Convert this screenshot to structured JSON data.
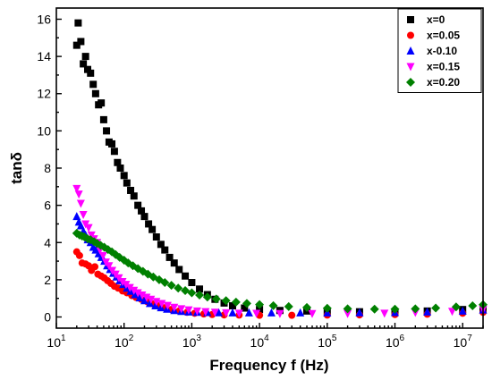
{
  "chart_data": {
    "type": "scatter",
    "xlabel": "Frequency f (Hz)",
    "ylabel": "tanδ",
    "xscale": "log",
    "xlim": [
      10,
      20000000
    ],
    "ylim": [
      -0.6,
      16.6
    ],
    "yticks": [
      0,
      2,
      4,
      6,
      8,
      10,
      12,
      14,
      16
    ],
    "xticks": [
      {
        "value": 10,
        "base": "10",
        "exp": "1"
      },
      {
        "value": 100,
        "base": "10",
        "exp": "2"
      },
      {
        "value": 1000,
        "base": "10",
        "exp": "3"
      },
      {
        "value": 10000,
        "base": "10",
        "exp": "4"
      },
      {
        "value": 100000,
        "base": "10",
        "exp": "5"
      },
      {
        "value": 1000000,
        "base": "10",
        "exp": "6"
      },
      {
        "value": 10000000,
        "base": "10",
        "exp": "7"
      }
    ],
    "legend_position": "top-right",
    "series": [
      {
        "name": "x=0",
        "marker": "square",
        "color": "#000000",
        "points": [
          [
            20,
            14.6
          ],
          [
            21,
            15.8
          ],
          [
            23,
            14.8
          ],
          [
            25,
            13.6
          ],
          [
            27,
            14.0
          ],
          [
            29,
            13.3
          ],
          [
            32,
            13.1
          ],
          [
            35,
            12.5
          ],
          [
            38,
            12.0
          ],
          [
            42,
            11.4
          ],
          [
            46,
            11.5
          ],
          [
            50,
            10.6
          ],
          [
            55,
            10.0
          ],
          [
            60,
            9.4
          ],
          [
            66,
            9.3
          ],
          [
            72,
            8.9
          ],
          [
            80,
            8.3
          ],
          [
            88,
            8.0
          ],
          [
            100,
            7.6
          ],
          [
            110,
            7.2
          ],
          [
            125,
            6.8
          ],
          [
            140,
            6.5
          ],
          [
            160,
            6.0
          ],
          [
            180,
            5.7
          ],
          [
            200,
            5.4
          ],
          [
            230,
            5.0
          ],
          [
            260,
            4.7
          ],
          [
            300,
            4.3
          ],
          [
            350,
            3.9
          ],
          [
            400,
            3.6
          ],
          [
            470,
            3.2
          ],
          [
            550,
            2.9
          ],
          [
            650,
            2.55
          ],
          [
            800,
            2.2
          ],
          [
            1000,
            1.85
          ],
          [
            1300,
            1.5
          ],
          [
            1700,
            1.2
          ],
          [
            2200,
            0.95
          ],
          [
            3000,
            0.75
          ],
          [
            4000,
            0.6
          ],
          [
            6000,
            0.48
          ],
          [
            10000,
            0.4
          ],
          [
            20000,
            0.35
          ],
          [
            50000,
            0.32
          ],
          [
            100000,
            0.3
          ],
          [
            300000,
            0.28
          ],
          [
            1000000,
            0.28
          ],
          [
            3000000,
            0.32
          ],
          [
            10000000,
            0.4
          ],
          [
            20000000,
            0.45
          ]
        ]
      },
      {
        "name": "x=0.05",
        "marker": "circle",
        "color": "#ff0000",
        "points": [
          [
            20,
            3.5
          ],
          [
            22,
            3.3
          ],
          [
            24,
            2.9
          ],
          [
            27,
            2.85
          ],
          [
            30,
            2.75
          ],
          [
            33,
            2.5
          ],
          [
            37,
            2.7
          ],
          [
            41,
            2.3
          ],
          [
            46,
            2.2
          ],
          [
            51,
            2.1
          ],
          [
            57,
            1.95
          ],
          [
            64,
            1.8
          ],
          [
            72,
            1.65
          ],
          [
            82,
            1.55
          ],
          [
            95,
            1.4
          ],
          [
            110,
            1.3
          ],
          [
            130,
            1.15
          ],
          [
            150,
            1.05
          ],
          [
            180,
            0.95
          ],
          [
            220,
            0.82
          ],
          [
            270,
            0.7
          ],
          [
            330,
            0.6
          ],
          [
            400,
            0.5
          ],
          [
            500,
            0.4
          ],
          [
            650,
            0.32
          ],
          [
            850,
            0.25
          ],
          [
            1100,
            0.2
          ],
          [
            1500,
            0.16
          ],
          [
            2000,
            0.13
          ],
          [
            3000,
            0.11
          ],
          [
            5000,
            0.1
          ],
          [
            10000,
            0.09
          ],
          [
            30000,
            0.09
          ],
          [
            100000,
            0.1
          ],
          [
            300000,
            0.11
          ],
          [
            1000000,
            0.13
          ],
          [
            3000000,
            0.15
          ],
          [
            10000000,
            0.2
          ],
          [
            20000000,
            0.25
          ]
        ]
      },
      {
        "name": "x-0.10",
        "marker": "triangle-up",
        "color": "#0000ff",
        "points": [
          [
            20,
            5.4
          ],
          [
            21.5,
            5.1
          ],
          [
            23,
            4.9
          ],
          [
            25,
            4.6
          ],
          [
            27,
            4.4
          ],
          [
            29,
            4.15
          ],
          [
            32,
            4.0
          ],
          [
            35,
            3.75
          ],
          [
            38,
            3.6
          ],
          [
            42,
            3.4
          ],
          [
            46,
            3.2
          ],
          [
            51,
            3.0
          ],
          [
            56,
            2.75
          ],
          [
            62,
            2.55
          ],
          [
            69,
            2.35
          ],
          [
            77,
            2.15
          ],
          [
            86,
            1.95
          ],
          [
            97,
            1.75
          ],
          [
            110,
            1.55
          ],
          [
            125,
            1.38
          ],
          [
            145,
            1.2
          ],
          [
            170,
            1.03
          ],
          [
            200,
            0.88
          ],
          [
            240,
            0.73
          ],
          [
            290,
            0.6
          ],
          [
            350,
            0.5
          ],
          [
            430,
            0.42
          ],
          [
            550,
            0.35
          ],
          [
            700,
            0.3
          ],
          [
            900,
            0.27
          ],
          [
            1200,
            0.25
          ],
          [
            1700,
            0.24
          ],
          [
            2500,
            0.23
          ],
          [
            4000,
            0.22
          ],
          [
            7000,
            0.22
          ],
          [
            15000,
            0.22
          ],
          [
            40000,
            0.22
          ],
          [
            100000,
            0.22
          ],
          [
            300000,
            0.23
          ],
          [
            1000000,
            0.24
          ],
          [
            3000000,
            0.27
          ],
          [
            10000000,
            0.32
          ],
          [
            20000000,
            0.38
          ]
        ]
      },
      {
        "name": "x=0.15",
        "marker": "triangle-down",
        "color": "#ff00ff",
        "points": [
          [
            20,
            6.9
          ],
          [
            21.5,
            6.6
          ],
          [
            23,
            6.1
          ],
          [
            25,
            5.5
          ],
          [
            27,
            5.0
          ],
          [
            30,
            4.8
          ],
          [
            33,
            4.4
          ],
          [
            36,
            4.2
          ],
          [
            40,
            4.0
          ],
          [
            44,
            3.6
          ],
          [
            49,
            3.3
          ],
          [
            54,
            2.95
          ],
          [
            60,
            2.75
          ],
          [
            67,
            2.5
          ],
          [
            75,
            2.3
          ],
          [
            84,
            2.1
          ],
          [
            95,
            1.9
          ],
          [
            107,
            1.75
          ],
          [
            122,
            1.58
          ],
          [
            140,
            1.43
          ],
          [
            160,
            1.3
          ],
          [
            185,
            1.18
          ],
          [
            215,
            1.06
          ],
          [
            250,
            0.95
          ],
          [
            300,
            0.83
          ],
          [
            360,
            0.72
          ],
          [
            440,
            0.62
          ],
          [
            550,
            0.52
          ],
          [
            700,
            0.44
          ],
          [
            900,
            0.38
          ],
          [
            1200,
            0.32
          ],
          [
            1600,
            0.28
          ],
          [
            2200,
            0.25
          ],
          [
            3200,
            0.22
          ],
          [
            5000,
            0.2
          ],
          [
            9000,
            0.19
          ],
          [
            20000,
            0.18
          ],
          [
            60000,
            0.18
          ],
          [
            200000,
            0.18
          ],
          [
            700000,
            0.2
          ],
          [
            2000000,
            0.24
          ],
          [
            7000000,
            0.3
          ],
          [
            20000000,
            0.4
          ]
        ]
      },
      {
        "name": "x=0.20",
        "marker": "diamond",
        "color": "#008000",
        "points": [
          [
            20,
            4.5
          ],
          [
            22,
            4.4
          ],
          [
            24,
            4.35
          ],
          [
            26,
            4.3
          ],
          [
            29,
            4.2
          ],
          [
            32,
            4.15
          ],
          [
            36,
            4.05
          ],
          [
            40,
            3.95
          ],
          [
            45,
            3.85
          ],
          [
            51,
            3.75
          ],
          [
            58,
            3.62
          ],
          [
            66,
            3.5
          ],
          [
            75,
            3.35
          ],
          [
            86,
            3.2
          ],
          [
            100,
            3.05
          ],
          [
            115,
            2.9
          ],
          [
            135,
            2.75
          ],
          [
            160,
            2.6
          ],
          [
            190,
            2.45
          ],
          [
            225,
            2.3
          ],
          [
            270,
            2.15
          ],
          [
            330,
            2.0
          ],
          [
            400,
            1.85
          ],
          [
            500,
            1.7
          ],
          [
            630,
            1.55
          ],
          [
            800,
            1.42
          ],
          [
            1000,
            1.3
          ],
          [
            1300,
            1.18
          ],
          [
            1700,
            1.07
          ],
          [
            2300,
            0.97
          ],
          [
            3200,
            0.88
          ],
          [
            4500,
            0.8
          ],
          [
            6500,
            0.73
          ],
          [
            10000,
            0.67
          ],
          [
            16000,
            0.61
          ],
          [
            27000,
            0.56
          ],
          [
            50000,
            0.51
          ],
          [
            100000,
            0.47
          ],
          [
            200000,
            0.44
          ],
          [
            500000,
            0.42
          ],
          [
            1000000,
            0.42
          ],
          [
            2000000,
            0.44
          ],
          [
            4000000,
            0.48
          ],
          [
            8000000,
            0.54
          ],
          [
            14000000,
            0.6
          ],
          [
            20000000,
            0.66
          ]
        ]
      }
    ]
  }
}
